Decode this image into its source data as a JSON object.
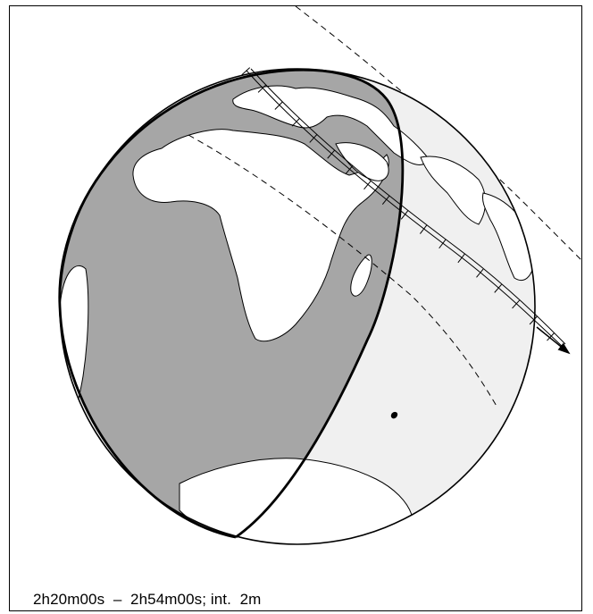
{
  "caption": "2h20m00s  –  2h54m00s; int.  2m",
  "colors": {
    "night_fill": "#a6a6a6",
    "day_fill": "#f0f0f0",
    "land_fill": "#ffffff",
    "line": "#000000",
    "background": "#ffffff"
  },
  "map": {
    "projection": "orthographic",
    "features": [
      "globe-limb",
      "terminator",
      "continents",
      "ground-track",
      "visibility-limits"
    ],
    "ground_track_tick_interval": "2m",
    "ground_track_ticks": 18
  }
}
